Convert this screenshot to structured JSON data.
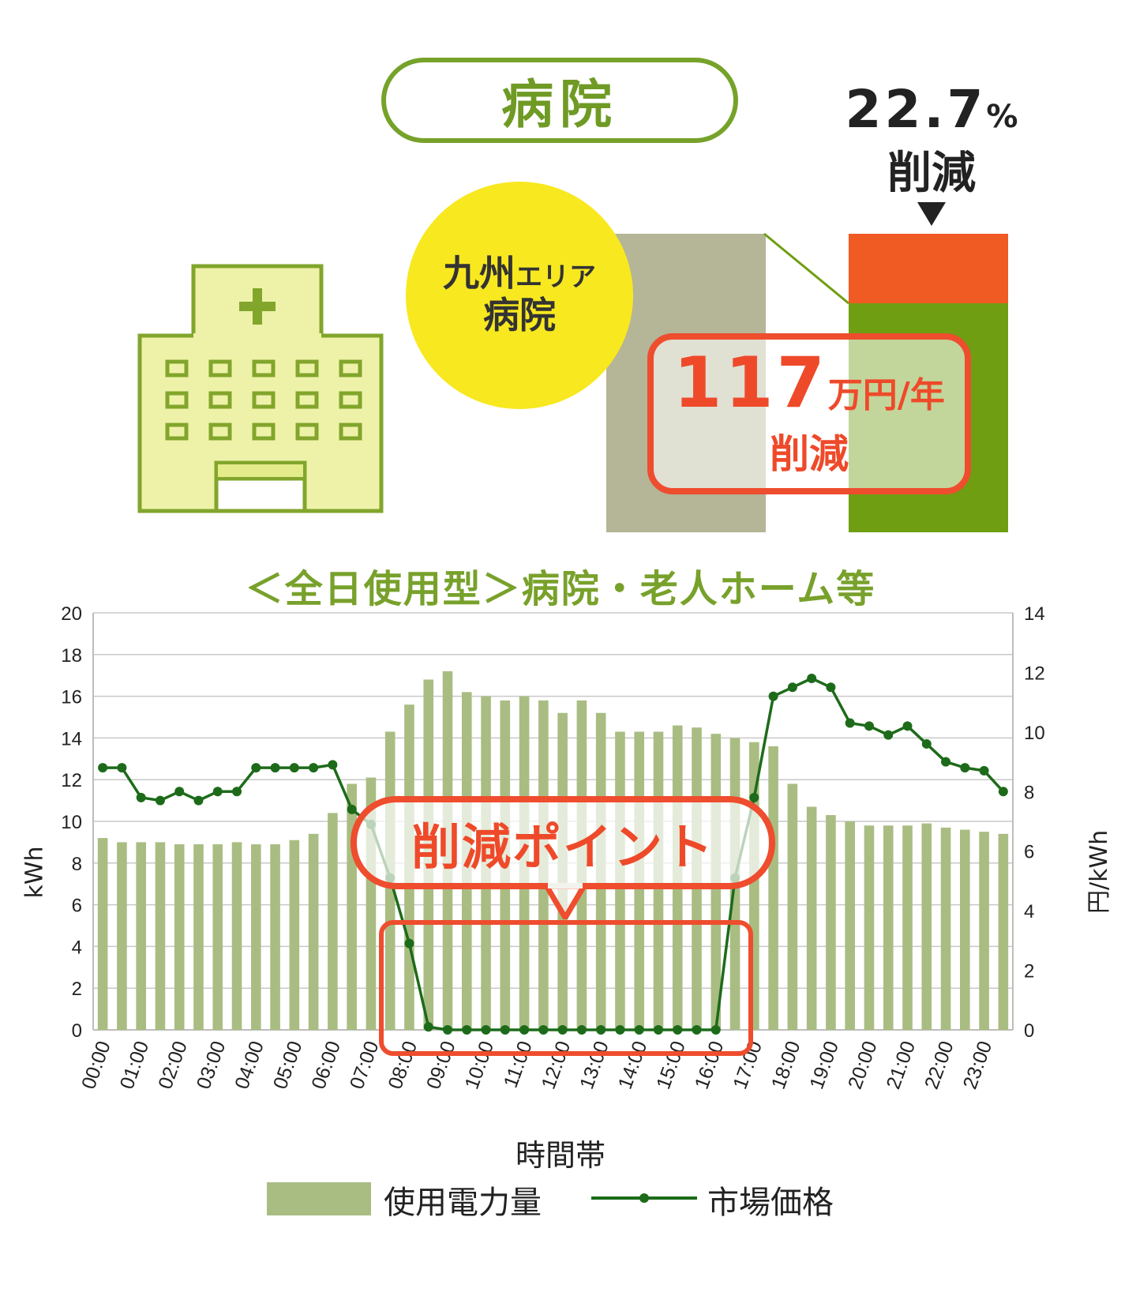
{
  "header": {
    "title": "病院"
  },
  "reduction": {
    "percent": "22.7",
    "percent_unit": "%",
    "label": "削減"
  },
  "area": {
    "region": "九州",
    "region_suffix": "エリア",
    "facility": "病院"
  },
  "saving": {
    "amount": "117",
    "unit": "万円/年",
    "label": "削減"
  },
  "subtitle": "＜全日使用型＞病院・老人ホーム等",
  "callout": {
    "label": "削減ポイント"
  },
  "colors": {
    "accent_green": "#76a22a",
    "bar_usage": "#a9bd82",
    "line_price": "#1d6b1a",
    "reduction_orange": "#f05a23",
    "after_green": "#6f9e12",
    "before_gray": "#b5b597",
    "circle_yellow": "#f8e820",
    "building_fill": "#eef2a8",
    "callout_red": "#ee4d2e"
  },
  "icons": {
    "building": "hospital-building-icon"
  },
  "chart_data": {
    "type": "bar",
    "xlabel": "時間帯",
    "ylabel": "kWh",
    "y2label": "円/kWh",
    "ylim": [
      0,
      20
    ],
    "y2lim": [
      0,
      14
    ],
    "yticks": [
      "0",
      "2",
      "4",
      "6",
      "8",
      "10",
      "12",
      "14",
      "16",
      "18",
      "20"
    ],
    "y2ticks": [
      "0",
      "2",
      "4",
      "6",
      "8",
      "10",
      "12",
      "14"
    ],
    "x_tick_labels": [
      "00:00",
      "01:00",
      "02:00",
      "03:00",
      "04:00",
      "05:00",
      "06:00",
      "07:00",
      "08:00",
      "09:00",
      "10:00",
      "11:00",
      "12:00",
      "13:00",
      "14:00",
      "15:00",
      "16:00",
      "17:00",
      "18:00",
      "19:00",
      "20:00",
      "21:00",
      "22:00",
      "23:00"
    ],
    "grid": true,
    "legend_position": "bottom",
    "series": [
      {
        "name": "使用電力量",
        "type": "bar",
        "axis": "left",
        "values": [
          9.2,
          9.0,
          9.0,
          9.0,
          8.9,
          8.9,
          8.9,
          9.0,
          8.9,
          8.9,
          9.1,
          9.4,
          10.4,
          11.8,
          12.1,
          14.3,
          15.6,
          16.8,
          17.2,
          16.2,
          16.0,
          15.8,
          16.0,
          15.8,
          15.2,
          15.8,
          15.2,
          14.3,
          14.3,
          14.3,
          14.6,
          14.5,
          14.2,
          14.0,
          13.8,
          13.6,
          11.8,
          10.7,
          10.3,
          10.0,
          9.8,
          9.8,
          9.8,
          9.9,
          9.7,
          9.6,
          9.5,
          9.4
        ]
      },
      {
        "name": "市場価格",
        "type": "line",
        "axis": "right",
        "values": [
          8.8,
          8.8,
          7.8,
          7.7,
          8.0,
          7.7,
          8.0,
          8.0,
          8.8,
          8.8,
          8.8,
          8.8,
          8.9,
          7.4,
          6.9,
          5.1,
          2.9,
          0.1,
          0.0,
          0.0,
          0.0,
          0.0,
          0.0,
          0.0,
          0.0,
          0.0,
          0.0,
          0.0,
          0.0,
          0.0,
          0.0,
          0.0,
          0.0,
          5.1,
          7.8,
          11.2,
          11.5,
          11.8,
          11.5,
          10.3,
          10.2,
          9.9,
          10.2,
          9.6,
          9.0,
          8.8,
          8.7,
          8.0
        ]
      }
    ]
  }
}
